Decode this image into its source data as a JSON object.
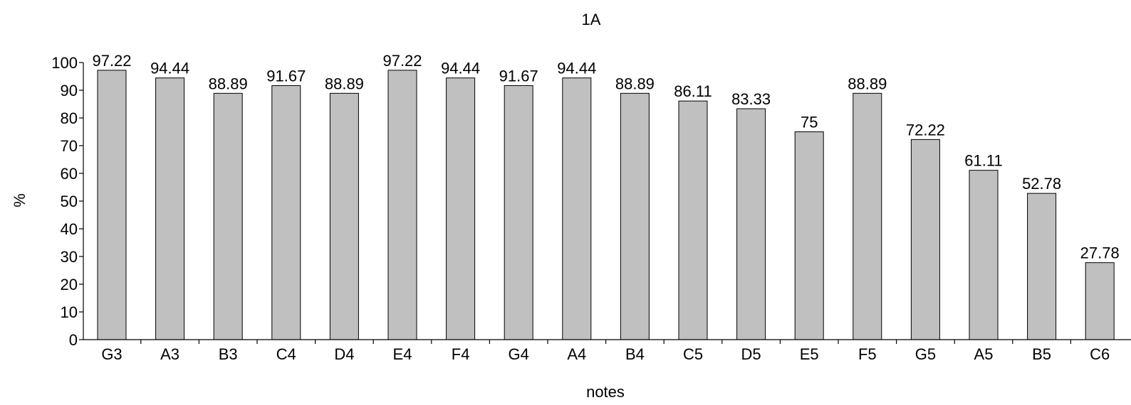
{
  "chart_data": {
    "type": "bar",
    "title": "1A",
    "xlabel": "notes",
    "ylabel": "%",
    "categories": [
      "G3",
      "A3",
      "B3",
      "C4",
      "D4",
      "E4",
      "F4",
      "G4",
      "A4",
      "B4",
      "C5",
      "D5",
      "E5",
      "F5",
      "G5",
      "A5",
      "B5",
      "C6"
    ],
    "values": [
      97.22,
      94.44,
      88.89,
      91.67,
      88.89,
      97.22,
      94.44,
      91.67,
      94.44,
      88.89,
      86.11,
      83.33,
      75,
      88.89,
      72.22,
      61.11,
      52.78,
      27.78
    ],
    "data_labels": [
      "97.22",
      "94.44",
      "88.89",
      "91.67",
      "88.89",
      "97.22",
      "94.44",
      "91.67",
      "94.44",
      "88.89",
      "86.11",
      "83.33",
      "75",
      "88.89",
      "72.22",
      "61.11",
      "52.78",
      "27.78"
    ],
    "ylim": [
      0,
      100
    ],
    "yticks": [
      "0",
      "10",
      "20",
      "30",
      "40",
      "50",
      "60",
      "70",
      "80",
      "90",
      "100"
    ],
    "grid": false,
    "legend": "none",
    "colors": {
      "bar_fill": "#c0c0c0",
      "bar_stroke": "#000000",
      "axis": "#000000"
    }
  }
}
